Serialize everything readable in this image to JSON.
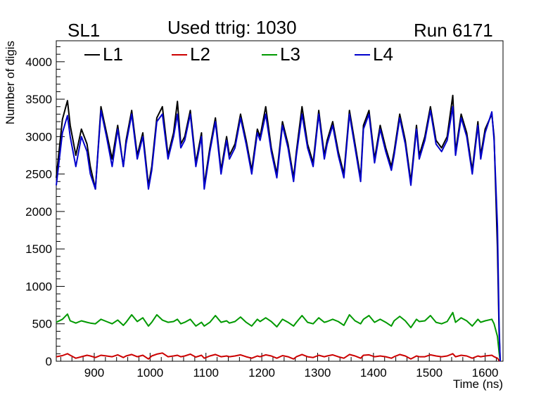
{
  "header": {
    "left": "SL1",
    "center": "Used ttrig: 1030",
    "right": "Run 6171"
  },
  "chart_data": {
    "type": "line",
    "title": "Used ttrig: 1030",
    "xlabel": "Time (ns)",
    "ylabel": "Number of digis",
    "xlim": [
      832,
      1632
    ],
    "ylim": [
      0,
      4280
    ],
    "x_ticks": [
      900,
      1000,
      1100,
      1200,
      1300,
      1400,
      1500,
      1600
    ],
    "y_ticks": [
      0,
      500,
      1000,
      1500,
      2000,
      2500,
      3000,
      3500,
      4000
    ],
    "legend_position": "top",
    "x": [
      832,
      843,
      852,
      857,
      867,
      877,
      887,
      893,
      902,
      912,
      922,
      932,
      942,
      952,
      957,
      967,
      977,
      987,
      997,
      1003,
      1012,
      1022,
      1032,
      1042,
      1049,
      1055,
      1062,
      1072,
      1082,
      1092,
      1097,
      1107,
      1117,
      1127,
      1137,
      1142,
      1152,
      1162,
      1172,
      1182,
      1192,
      1197,
      1207,
      1217,
      1227,
      1237,
      1247,
      1257,
      1262,
      1272,
      1282,
      1292,
      1302,
      1312,
      1317,
      1327,
      1337,
      1347,
      1357,
      1367,
      1377,
      1382,
      1392,
      1402,
      1412,
      1422,
      1432,
      1437,
      1447,
      1457,
      1467,
      1477,
      1482,
      1492,
      1502,
      1512,
      1522,
      1532,
      1542,
      1547,
      1557,
      1567,
      1577,
      1587,
      1592,
      1600,
      1612,
      1616,
      1622,
      1625,
      1627
    ],
    "series": [
      {
        "name": "L1",
        "color": "#000000",
        "values": [
          2450,
          3230,
          3480,
          3150,
          2750,
          3100,
          2900,
          2600,
          2300,
          3400,
          3050,
          2700,
          3150,
          2600,
          2950,
          3350,
          2750,
          3050,
          2350,
          2600,
          3250,
          3400,
          2750,
          3050,
          3470,
          2900,
          3000,
          3350,
          2650,
          3050,
          2350,
          2850,
          3250,
          2550,
          3000,
          2750,
          2900,
          3300,
          2950,
          2550,
          3100,
          3000,
          3400,
          2850,
          2500,
          3200,
          2900,
          2450,
          2800,
          3400,
          2900,
          2650,
          3350,
          2750,
          2950,
          3200,
          2800,
          2500,
          3350,
          2900,
          2450,
          3150,
          3350,
          2700,
          3150,
          2850,
          2600,
          2800,
          3300,
          2950,
          2400,
          3150,
          2750,
          3000,
          3400,
          2950,
          2850,
          3000,
          3550,
          2800,
          3300,
          3050,
          2550,
          3200,
          2750,
          3100,
          3300,
          3000,
          1500,
          400,
          0
        ]
      },
      {
        "name": "L2",
        "color": "#cc0000",
        "values": [
          60,
          75,
          100,
          80,
          40,
          60,
          80,
          70,
          50,
          80,
          70,
          60,
          85,
          50,
          70,
          90,
          60,
          80,
          30,
          70,
          95,
          110,
          60,
          70,
          80,
          60,
          70,
          95,
          55,
          80,
          40,
          70,
          90,
          60,
          70,
          60,
          70,
          85,
          60,
          40,
          70,
          60,
          85,
          70,
          40,
          75,
          60,
          30,
          60,
          90,
          60,
          50,
          80,
          60,
          70,
          85,
          60,
          40,
          90,
          70,
          40,
          80,
          85,
          60,
          70,
          60,
          40,
          60,
          90,
          70,
          30,
          70,
          60,
          60,
          85,
          70,
          60,
          70,
          100,
          60,
          80,
          70,
          40,
          70,
          60,
          70,
          80,
          60,
          40,
          10,
          0
        ]
      },
      {
        "name": "L3",
        "color": "#009900",
        "values": [
          520,
          560,
          630,
          540,
          510,
          540,
          520,
          510,
          500,
          560,
          530,
          500,
          550,
          480,
          520,
          620,
          530,
          580,
          470,
          520,
          620,
          550,
          520,
          530,
          560,
          500,
          520,
          560,
          470,
          520,
          470,
          520,
          610,
          520,
          540,
          510,
          530,
          590,
          520,
          470,
          560,
          530,
          580,
          530,
          460,
          560,
          520,
          470,
          520,
          610,
          520,
          500,
          580,
          520,
          530,
          560,
          530,
          480,
          620,
          540,
          500,
          560,
          610,
          520,
          560,
          520,
          470,
          540,
          600,
          540,
          450,
          560,
          530,
          540,
          610,
          520,
          500,
          530,
          650,
          520,
          580,
          540,
          470,
          560,
          520,
          540,
          560,
          500,
          330,
          120,
          0
        ]
      },
      {
        "name": "L4",
        "color": "#0000cc",
        "values": [
          2350,
          3050,
          3280,
          3000,
          2600,
          3000,
          2800,
          2500,
          2300,
          3350,
          3000,
          2600,
          3100,
          2600,
          2900,
          3300,
          2700,
          3000,
          2300,
          2550,
          3200,
          3300,
          2700,
          3000,
          3300,
          2850,
          2950,
          3300,
          2600,
          3000,
          2300,
          2800,
          3200,
          2500,
          2950,
          2700,
          2850,
          3250,
          2900,
          2500,
          3050,
          2950,
          3300,
          2800,
          2450,
          3150,
          2850,
          2400,
          2750,
          3300,
          2850,
          2600,
          3300,
          2700,
          2900,
          3150,
          2750,
          2450,
          3300,
          2850,
          2400,
          3100,
          3300,
          2650,
          3100,
          2800,
          2550,
          2750,
          3250,
          2900,
          2350,
          3100,
          2700,
          2950,
          3350,
          2900,
          2800,
          2950,
          3400,
          2750,
          3250,
          3000,
          2500,
          3150,
          2700,
          3050,
          3330,
          2950,
          1800,
          500,
          0
        ]
      }
    ]
  }
}
